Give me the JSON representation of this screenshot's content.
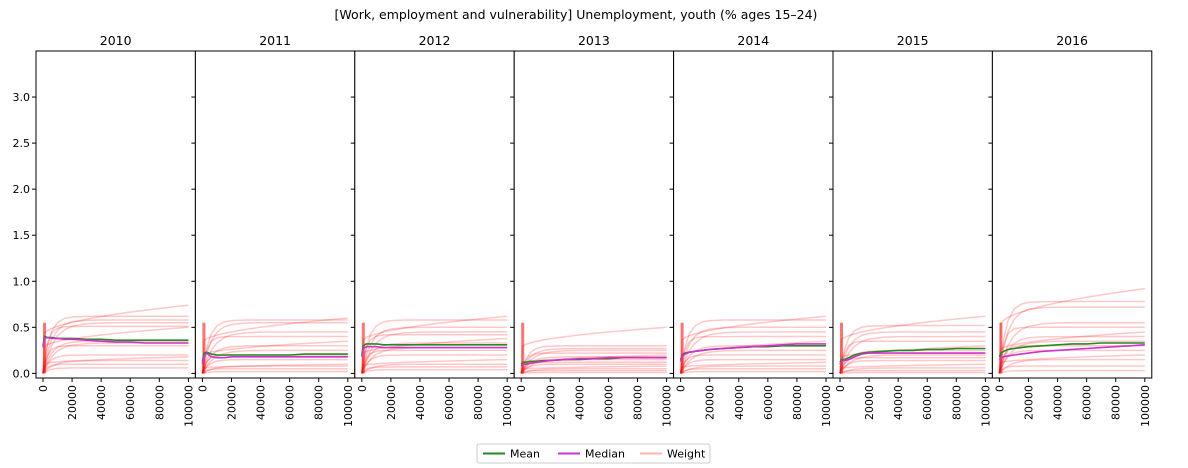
{
  "title": "[Work, employment and vulnerability] Unemployment, youth (% ages 15–24)",
  "colors": {
    "mean": "#228B22",
    "median": "#CC33CC",
    "weight": "#FF0000",
    "weight_legend": "#FFB0B0"
  },
  "legend": {
    "placement": "bottom-center",
    "items": [
      {
        "label": "Mean",
        "color_key": "mean"
      },
      {
        "label": "Median",
        "color_key": "median"
      },
      {
        "label": "Weight",
        "color_key": "weight_legend"
      }
    ]
  },
  "chart_data": {
    "type": "line",
    "layout": "small-multiples",
    "shared_y": true,
    "xlim": [
      0,
      100000
    ],
    "ylim": [
      -0.05,
      3.5
    ],
    "x_ticks": [
      0,
      20000,
      40000,
      60000,
      80000,
      100000
    ],
    "y_ticks": [
      0.0,
      0.5,
      1.0,
      1.5,
      2.0,
      2.5,
      3.0
    ],
    "x": [
      0,
      1000,
      3000,
      6000,
      10000,
      15000,
      20000,
      30000,
      40000,
      50000,
      60000,
      70000,
      80000,
      90000,
      100000
    ],
    "panels": [
      {
        "label": "2010",
        "mean": [
          0.3,
          0.4,
          0.39,
          0.39,
          0.38,
          0.38,
          0.38,
          0.37,
          0.37,
          0.36,
          0.36,
          0.36,
          0.36,
          0.36,
          0.36
        ],
        "median": [
          0.28,
          0.38,
          0.39,
          0.38,
          0.38,
          0.37,
          0.37,
          0.36,
          0.35,
          0.34,
          0.34,
          0.33,
          0.33,
          0.33,
          0.33
        ],
        "weight_finals": [
          0.74,
          0.62,
          0.58,
          0.55,
          0.51,
          0.5,
          0.35,
          0.33,
          0.3,
          0.2,
          0.18,
          0.14,
          0.1,
          0.06
        ]
      },
      {
        "label": "2011",
        "mean": [
          0.12,
          0.22,
          0.23,
          0.21,
          0.2,
          0.2,
          0.2,
          0.2,
          0.2,
          0.2,
          0.2,
          0.21,
          0.21,
          0.21,
          0.21
        ],
        "median": [
          0.1,
          0.19,
          0.22,
          0.18,
          0.17,
          0.17,
          0.18,
          0.18,
          0.18,
          0.18,
          0.18,
          0.18,
          0.18,
          0.18,
          0.18
        ],
        "weight_finals": [
          0.6,
          0.58,
          0.55,
          0.45,
          0.4,
          0.35,
          0.3,
          0.25,
          0.2,
          0.15,
          0.1,
          0.08,
          0.05,
          0.02
        ]
      },
      {
        "label": "2012",
        "mean": [
          0.2,
          0.3,
          0.32,
          0.32,
          0.32,
          0.31,
          0.31,
          0.31,
          0.31,
          0.31,
          0.31,
          0.31,
          0.31,
          0.31,
          0.31
        ],
        "median": [
          0.18,
          0.27,
          0.29,
          0.29,
          0.29,
          0.28,
          0.28,
          0.28,
          0.28,
          0.28,
          0.28,
          0.28,
          0.28,
          0.28,
          0.28
        ],
        "weight_finals": [
          0.62,
          0.58,
          0.5,
          0.45,
          0.42,
          0.38,
          0.33,
          0.28,
          0.25,
          0.2,
          0.15,
          0.1,
          0.07,
          0.04
        ]
      },
      {
        "label": "2013",
        "mean": [
          0.1,
          0.12,
          0.12,
          0.13,
          0.13,
          0.14,
          0.14,
          0.15,
          0.15,
          0.16,
          0.16,
          0.17,
          0.17,
          0.17,
          0.17
        ],
        "median": [
          0.08,
          0.1,
          0.1,
          0.11,
          0.12,
          0.13,
          0.14,
          0.15,
          0.16,
          0.16,
          0.17,
          0.17,
          0.17,
          0.17,
          0.17
        ],
        "weight_finals": [
          0.5,
          0.3,
          0.27,
          0.25,
          0.22,
          0.2,
          0.18,
          0.15,
          0.12,
          0.1,
          0.08,
          0.05,
          0.03,
          0.01
        ]
      },
      {
        "label": "2014",
        "mean": [
          0.15,
          0.2,
          0.22,
          0.23,
          0.24,
          0.25,
          0.26,
          0.27,
          0.28,
          0.29,
          0.29,
          0.3,
          0.3,
          0.3,
          0.3
        ],
        "median": [
          0.13,
          0.19,
          0.21,
          0.23,
          0.24,
          0.25,
          0.26,
          0.27,
          0.28,
          0.29,
          0.3,
          0.31,
          0.32,
          0.32,
          0.32
        ],
        "weight_finals": [
          0.62,
          0.58,
          0.5,
          0.45,
          0.4,
          0.35,
          0.3,
          0.25,
          0.2,
          0.15,
          0.12,
          0.08,
          0.05,
          0.02
        ]
      },
      {
        "label": "2015",
        "mean": [
          0.12,
          0.15,
          0.15,
          0.17,
          0.2,
          0.22,
          0.23,
          0.24,
          0.25,
          0.25,
          0.26,
          0.26,
          0.27,
          0.27,
          0.27
        ],
        "median": [
          0.1,
          0.13,
          0.14,
          0.15,
          0.18,
          0.21,
          0.22,
          0.22,
          0.22,
          0.22,
          0.22,
          0.22,
          0.22,
          0.22,
          0.22
        ],
        "weight_finals": [
          0.62,
          0.52,
          0.45,
          0.4,
          0.35,
          0.3,
          0.25,
          0.2,
          0.17,
          0.14,
          0.1,
          0.06,
          0.03,
          0.01
        ]
      },
      {
        "label": "2016",
        "mean": [
          0.18,
          0.22,
          0.24,
          0.26,
          0.27,
          0.28,
          0.29,
          0.3,
          0.31,
          0.32,
          0.32,
          0.33,
          0.33,
          0.33,
          0.33
        ],
        "median": [
          0.15,
          0.17,
          0.18,
          0.19,
          0.2,
          0.21,
          0.22,
          0.24,
          0.25,
          0.26,
          0.27,
          0.28,
          0.29,
          0.3,
          0.31
        ],
        "weight_finals": [
          0.92,
          0.78,
          0.72,
          0.55,
          0.5,
          0.45,
          0.4,
          0.35,
          0.3,
          0.25,
          0.2,
          0.15,
          0.08,
          0.03
        ]
      }
    ]
  }
}
